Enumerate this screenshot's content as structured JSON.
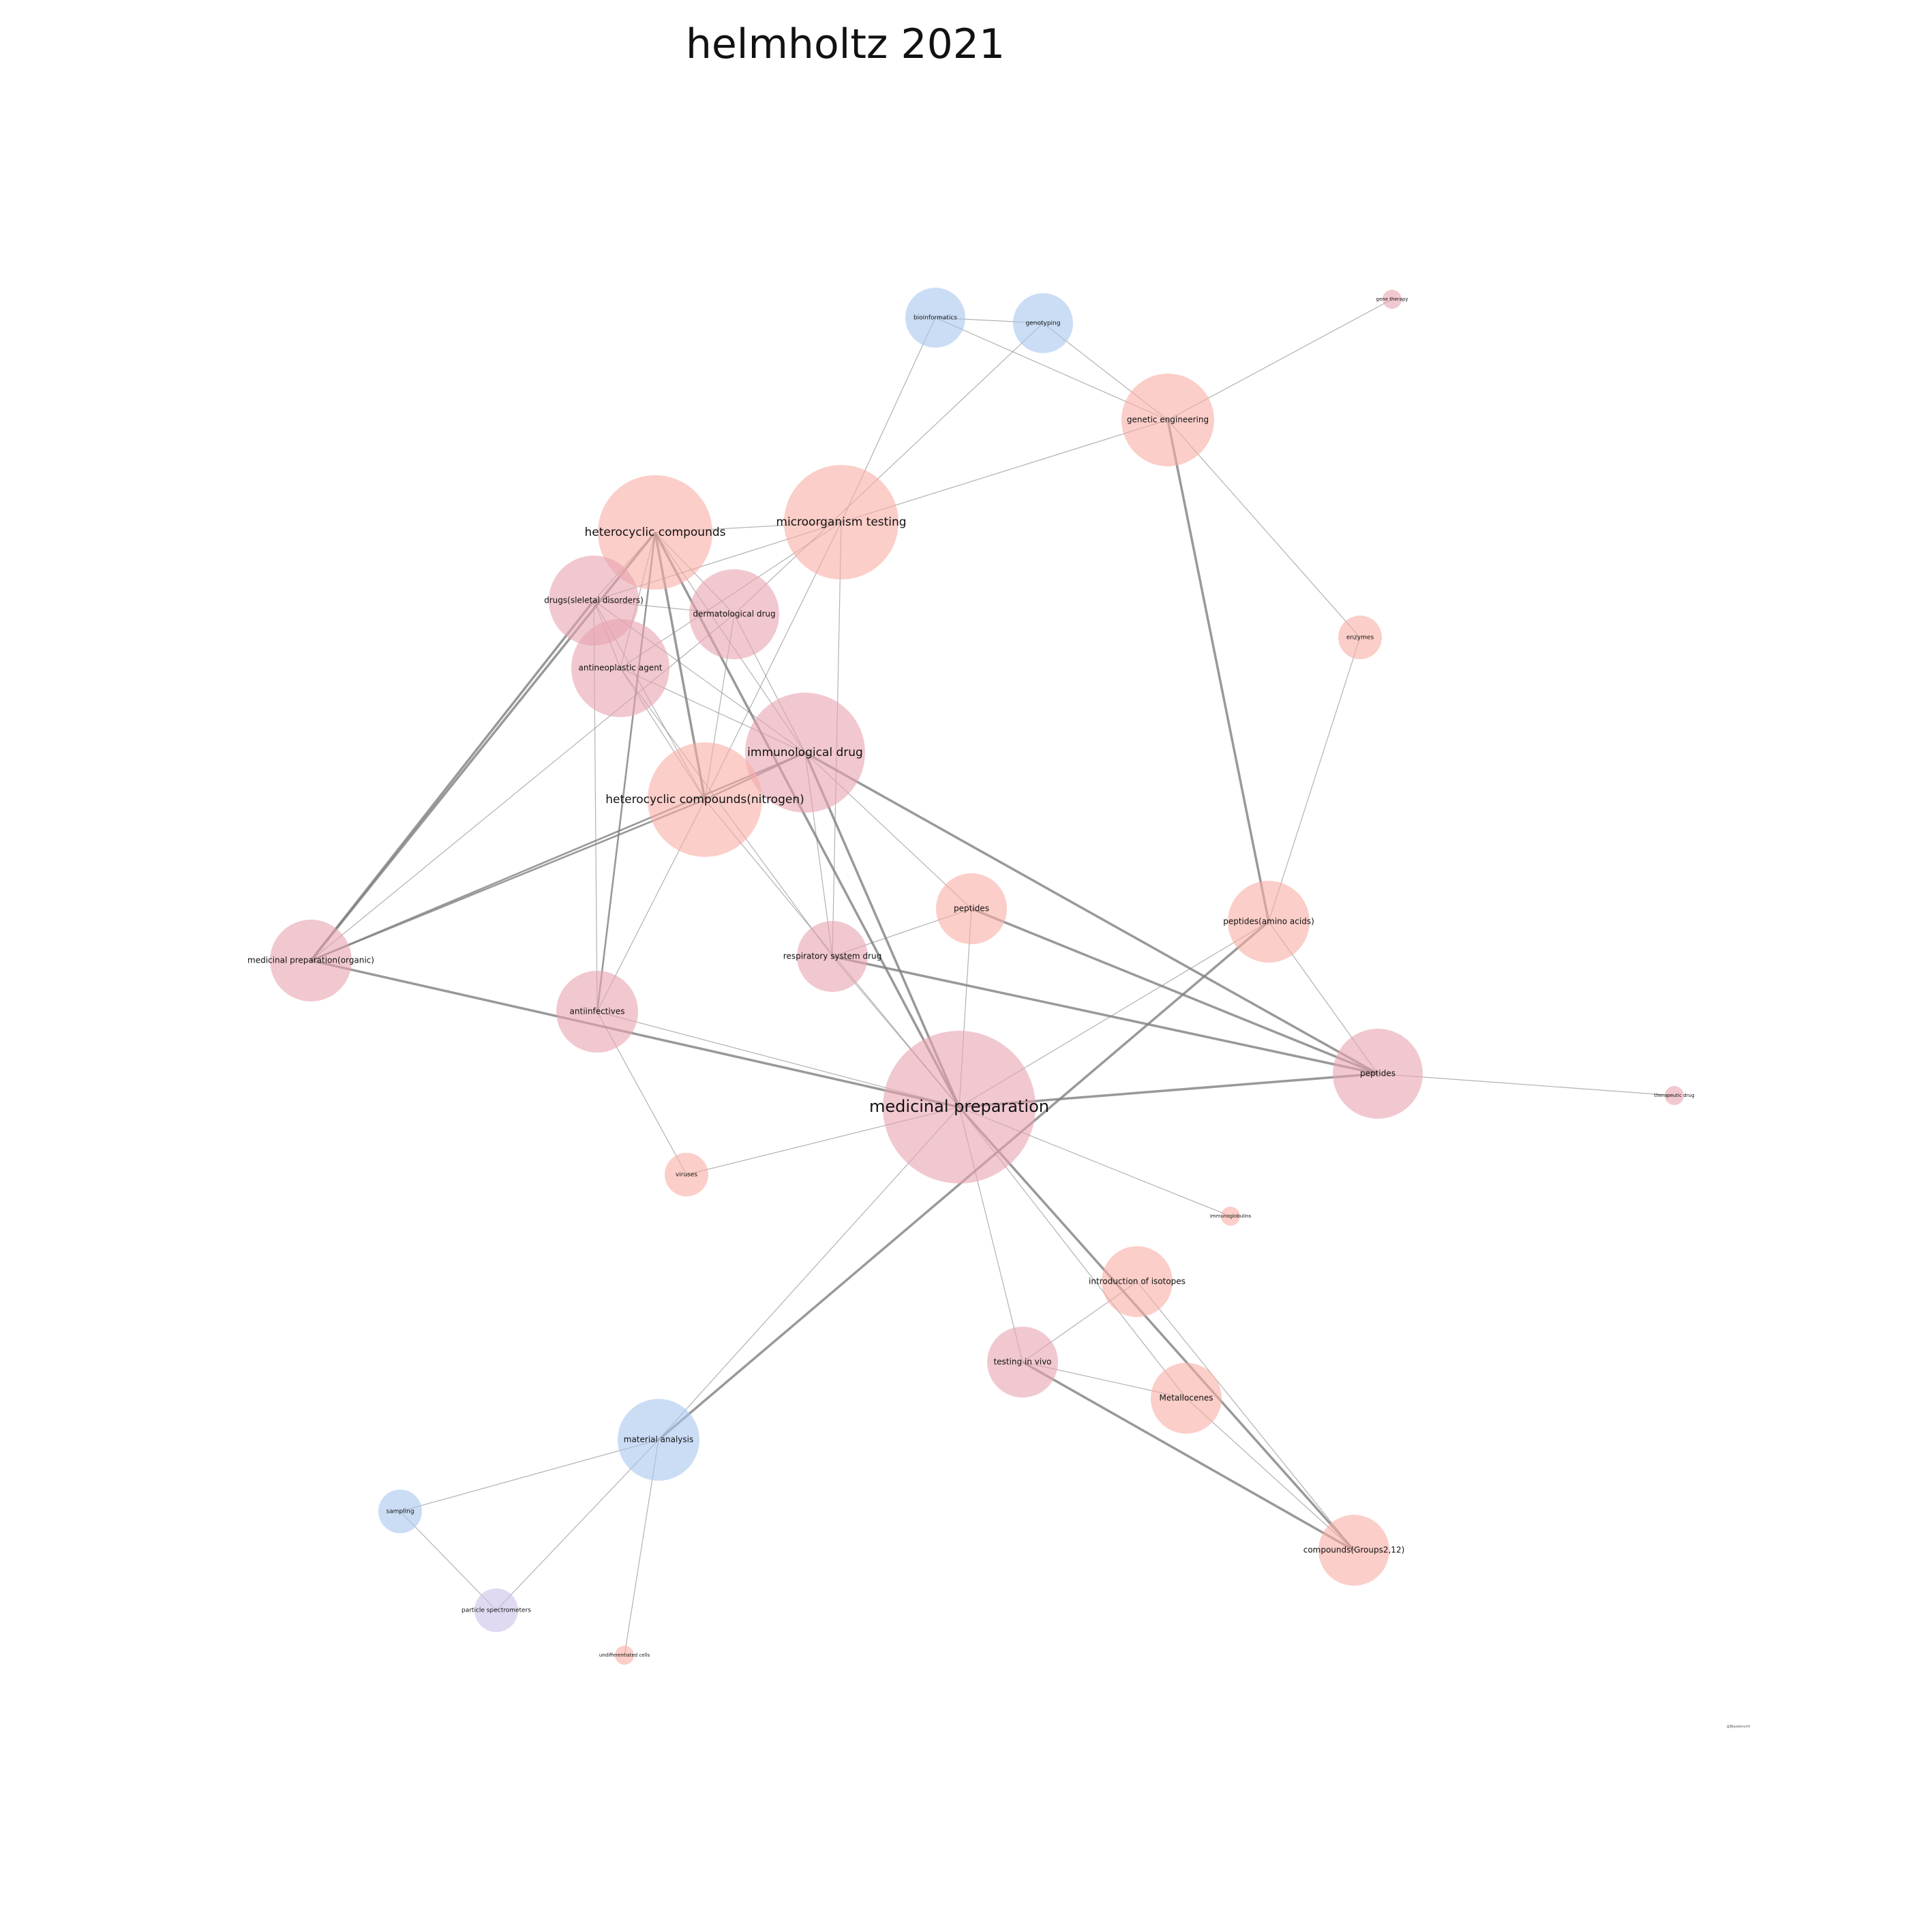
{
  "title": "helmholtz 2021",
  "watermark": "@Bjazaknumt",
  "colors": {
    "pink_dark": "#e8a3b0",
    "salmon": "#f9aea5",
    "blue": "#a9c7ef",
    "lavender": "#cdbfea",
    "edge": "#7f7f7f"
  },
  "nodes": [
    {
      "id": "bioinformatics",
      "label": "bioinformatics",
      "color": "blue",
      "size": 1.1
    },
    {
      "id": "genotyping",
      "label": "genotyping",
      "color": "blue",
      "size": 1.1
    },
    {
      "id": "gene_therapy",
      "label": "gene therapy",
      "color": "pink_dark",
      "size": 0.35
    },
    {
      "id": "genetic_engineering",
      "label": "genetic engineering",
      "color": "salmon",
      "size": 1.7
    },
    {
      "id": "heterocyclic_compounds",
      "label": "heterocyclic compounds",
      "color": "salmon",
      "size": 2.1
    },
    {
      "id": "microorganism_testing",
      "label": "microorganism testing",
      "color": "salmon",
      "size": 2.1
    },
    {
      "id": "drugs_skeletal",
      "label": "drugs(sleletal disorders)",
      "color": "pink_dark",
      "size": 1.65
    },
    {
      "id": "dermatological_drug",
      "label": "dermatological drug",
      "color": "pink_dark",
      "size": 1.65
    },
    {
      "id": "enzymes",
      "label": "enzymes",
      "color": "salmon",
      "size": 0.8
    },
    {
      "id": "antineoplastic_agent",
      "label": "antineoplastic agent",
      "color": "pink_dark",
      "size": 1.8
    },
    {
      "id": "immunological_drug",
      "label": "immunological drug",
      "color": "pink_dark",
      "size": 2.2
    },
    {
      "id": "heterocyclic_nitrogen",
      "label": "heterocyclic compounds(nitrogen)",
      "color": "salmon",
      "size": 2.1
    },
    {
      "id": "peptides_small",
      "label": "peptides",
      "color": "salmon",
      "size": 1.3
    },
    {
      "id": "peptides_amino",
      "label": "peptides(amino acids)",
      "color": "salmon",
      "size": 1.5
    },
    {
      "id": "medicinal_organic",
      "label": "medicinal preparation(organic)",
      "color": "pink_dark",
      "size": 1.5
    },
    {
      "id": "respiratory_drug",
      "label": "respiratory system drug",
      "color": "pink_dark",
      "size": 1.3
    },
    {
      "id": "antiinfectives",
      "label": "antiinfectives",
      "color": "pink_dark",
      "size": 1.5
    },
    {
      "id": "peptides",
      "label": "peptides",
      "color": "pink_dark",
      "size": 1.65
    },
    {
      "id": "therapeutic_drug",
      "label": "therapeutic drug",
      "color": "pink_dark",
      "size": 0.35
    },
    {
      "id": "medicinal_preparation",
      "label": "medicinal preparation",
      "color": "pink_dark",
      "size": 2.8
    },
    {
      "id": "viruses",
      "label": "viruses",
      "color": "salmon",
      "size": 0.8
    },
    {
      "id": "immunoglobulins",
      "label": "immunoglobulins",
      "color": "salmon",
      "size": 0.35
    },
    {
      "id": "isotopes",
      "label": "introduction of isotopes",
      "color": "salmon",
      "size": 1.3
    },
    {
      "id": "testing_in_vivo",
      "label": "testing in vivo",
      "color": "pink_dark",
      "size": 1.3
    },
    {
      "id": "metallocenes",
      "label": "Metallocenes",
      "color": "salmon",
      "size": 1.3
    },
    {
      "id": "material_analysis",
      "label": "material analysis",
      "color": "blue",
      "size": 1.5
    },
    {
      "id": "sampling",
      "label": "sampling",
      "color": "blue",
      "size": 0.8
    },
    {
      "id": "particle_spectrometers",
      "label": "particle spectrometers",
      "color": "lavender",
      "size": 0.8
    },
    {
      "id": "undifferentiated_cells",
      "label": "undifferentiated cells",
      "color": "salmon",
      "size": 0.35
    },
    {
      "id": "compounds_groups",
      "label": "compounds(Groups2,12)",
      "color": "salmon",
      "size": 1.3
    }
  ],
  "edges": [
    {
      "s": "bioinformatics",
      "t": "genotyping",
      "w": 1
    },
    {
      "s": "bioinformatics",
      "t": "genetic_engineering",
      "w": 1
    },
    {
      "s": "bioinformatics",
      "t": "microorganism_testing",
      "w": 1
    },
    {
      "s": "genotyping",
      "t": "genetic_engineering",
      "w": 1
    },
    {
      "s": "genotyping",
      "t": "dermatological_drug",
      "w": 1
    },
    {
      "s": "gene_therapy",
      "t": "genetic_engineering",
      "w": 1
    },
    {
      "s": "genetic_engineering",
      "t": "microorganism_testing",
      "w": 1
    },
    {
      "s": "genetic_engineering",
      "t": "enzymes",
      "w": 1
    },
    {
      "s": "genetic_engineering",
      "t": "peptides_amino",
      "w": 3
    },
    {
      "s": "heterocyclic_compounds",
      "t": "microorganism_testing",
      "w": 1
    },
    {
      "s": "heterocyclic_compounds",
      "t": "drugs_skeletal",
      "w": 1
    },
    {
      "s": "heterocyclic_compounds",
      "t": "dermatological_drug",
      "w": 1
    },
    {
      "s": "heterocyclic_compounds",
      "t": "antineoplastic_agent",
      "w": 1
    },
    {
      "s": "heterocyclic_compounds",
      "t": "immunological_drug",
      "w": 1
    },
    {
      "s": "heterocyclic_compounds",
      "t": "heterocyclic_nitrogen",
      "w": 3
    },
    {
      "s": "heterocyclic_compounds",
      "t": "medicinal_organic",
      "w": 3
    },
    {
      "s": "heterocyclic_compounds",
      "t": "antiinfectives",
      "w": 2
    },
    {
      "s": "heterocyclic_compounds",
      "t": "medicinal_preparation",
      "w": 3
    },
    {
      "s": "microorganism_testing",
      "t": "drugs_skeletal",
      "w": 1
    },
    {
      "s": "microorganism_testing",
      "t": "antineoplastic_agent",
      "w": 1
    },
    {
      "s": "microorganism_testing",
      "t": "heterocyclic_nitrogen",
      "w": 1
    },
    {
      "s": "microorganism_testing",
      "t": "respiratory_drug",
      "w": 1
    },
    {
      "s": "drugs_skeletal",
      "t": "dermatological_drug",
      "w": 1
    },
    {
      "s": "drugs_skeletal",
      "t": "antineoplastic_agent",
      "w": 1
    },
    {
      "s": "drugs_skeletal",
      "t": "immunological_drug",
      "w": 1
    },
    {
      "s": "drugs_skeletal",
      "t": "heterocyclic_nitrogen",
      "w": 1
    },
    {
      "s": "drugs_skeletal",
      "t": "medicinal_organic",
      "w": 3
    },
    {
      "s": "drugs_skeletal",
      "t": "antiinfectives",
      "w": 1
    },
    {
      "s": "dermatological_drug",
      "t": "heterocyclic_nitrogen",
      "w": 1
    },
    {
      "s": "dermatological_drug",
      "t": "immunological_drug",
      "w": 1
    },
    {
      "s": "dermatological_drug",
      "t": "medicinal_organic",
      "w": 1
    },
    {
      "s": "antineoplastic_agent",
      "t": "immunological_drug",
      "w": 1
    },
    {
      "s": "antineoplastic_agent",
      "t": "heterocyclic_nitrogen",
      "w": 1
    },
    {
      "s": "antineoplastic_agent",
      "t": "respiratory_drug",
      "w": 1
    },
    {
      "s": "immunological_drug",
      "t": "heterocyclic_nitrogen",
      "w": 2
    },
    {
      "s": "immunological_drug",
      "t": "peptides_small",
      "w": 1
    },
    {
      "s": "immunological_drug",
      "t": "peptides",
      "w": 3
    },
    {
      "s": "immunological_drug",
      "t": "respiratory_drug",
      "w": 1
    },
    {
      "s": "immunological_drug",
      "t": "medicinal_preparation",
      "w": 3
    },
    {
      "s": "immunological_drug",
      "t": "medicinal_organic",
      "w": 2
    },
    {
      "s": "heterocyclic_nitrogen",
      "t": "medicinal_organic",
      "w": 2
    },
    {
      "s": "heterocyclic_nitrogen",
      "t": "antiinfectives",
      "w": 1
    },
    {
      "s": "heterocyclic_nitrogen",
      "t": "medicinal_preparation",
      "w": 1
    },
    {
      "s": "peptides_small",
      "t": "respiratory_drug",
      "w": 1
    },
    {
      "s": "peptides_small",
      "t": "peptides",
      "w": 3
    },
    {
      "s": "peptides_small",
      "t": "medicinal_preparation",
      "w": 1
    },
    {
      "s": "enzymes",
      "t": "peptides_amino",
      "w": 1
    },
    {
      "s": "peptides_amino",
      "t": "peptides",
      "w": 1
    },
    {
      "s": "peptides_amino",
      "t": "medicinal_preparation",
      "w": 1
    },
    {
      "s": "peptides_amino",
      "t": "material_analysis",
      "w": 3
    },
    {
      "s": "medicinal_organic",
      "t": "medicinal_preparation",
      "w": 3
    },
    {
      "s": "respiratory_drug",
      "t": "peptides",
      "w": 3
    },
    {
      "s": "respiratory_drug",
      "t": "medicinal_preparation",
      "w": 1
    },
    {
      "s": "antiinfectives",
      "t": "medicinal_preparation",
      "w": 1
    },
    {
      "s": "antiinfectives",
      "t": "viruses",
      "w": 1
    },
    {
      "s": "peptides",
      "t": "medicinal_preparation",
      "w": 3
    },
    {
      "s": "peptides",
      "t": "therapeutic_drug",
      "w": 1
    },
    {
      "s": "medicinal_preparation",
      "t": "viruses",
      "w": 1
    },
    {
      "s": "medicinal_preparation",
      "t": "immunoglobulins",
      "w": 1
    },
    {
      "s": "medicinal_preparation",
      "t": "testing_in_vivo",
      "w": 1
    },
    {
      "s": "medicinal_preparation",
      "t": "metallocenes",
      "w": 1
    },
    {
      "s": "medicinal_preparation",
      "t": "compounds_groups",
      "w": 3
    },
    {
      "s": "medicinal_preparation",
      "t": "material_analysis",
      "w": 1
    },
    {
      "s": "isotopes",
      "t": "testing_in_vivo",
      "w": 1
    },
    {
      "s": "isotopes",
      "t": "compounds_groups",
      "w": 1
    },
    {
      "s": "testing_in_vivo",
      "t": "metallocenes",
      "w": 1
    },
    {
      "s": "testing_in_vivo",
      "t": "compounds_groups",
      "w": 3
    },
    {
      "s": "metallocenes",
      "t": "compounds_groups",
      "w": 1
    },
    {
      "s": "material_analysis",
      "t": "sampling",
      "w": 1
    },
    {
      "s": "material_analysis",
      "t": "particle_spectrometers",
      "w": 1
    },
    {
      "s": "material_analysis",
      "t": "undifferentiated_cells",
      "w": 1
    },
    {
      "s": "sampling",
      "t": "particle_spectrometers",
      "w": 1
    }
  ]
}
